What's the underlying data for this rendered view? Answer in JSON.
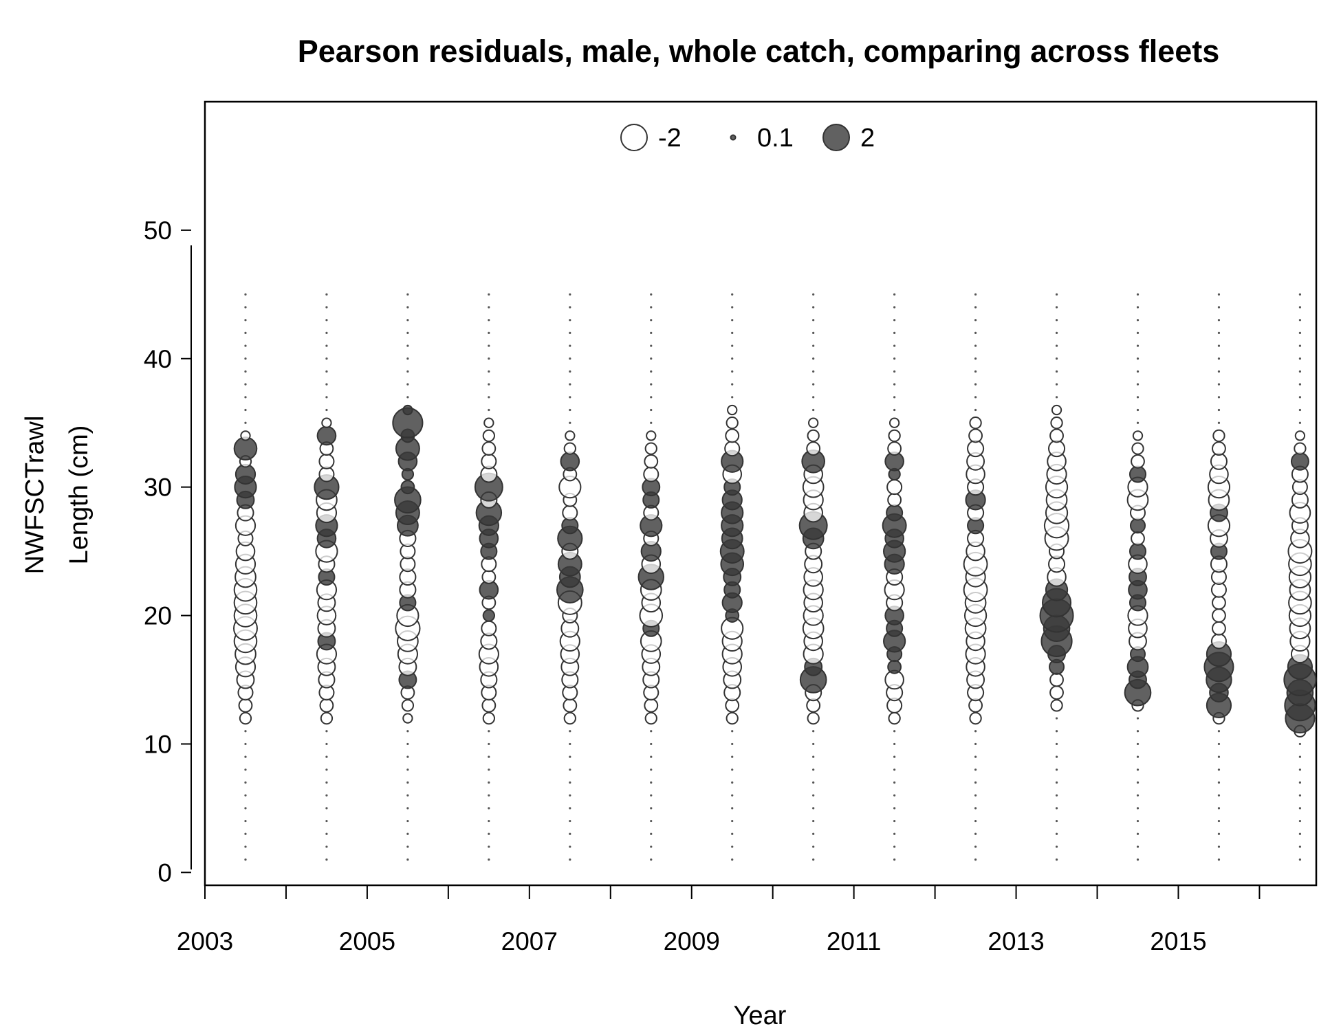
{
  "chart_data": {
    "type": "scatter",
    "subtype": "bubble",
    "title": "Pearson residuals, male, whole catch, comparing across fleets",
    "xlabel": "Year",
    "ylabel": [
      "NWFSCTrawl",
      "Length (cm)"
    ],
    "xlim": [
      2003,
      2016.7
    ],
    "ylim": [
      -1,
      60
    ],
    "x_ticks": [
      2003,
      2004,
      2005,
      2006,
      2007,
      2008,
      2009,
      2010,
      2011,
      2012,
      2013,
      2014,
      2015,
      2016
    ],
    "x_tick_labels": [
      "2003",
      "2005",
      "2007",
      "2009",
      "2011",
      "2013",
      "2015"
    ],
    "y_ticks": [
      0,
      10,
      20,
      30,
      40,
      50
    ],
    "grid": false,
    "legend": {
      "position": "top-center",
      "entries": [
        {
          "label": "-2",
          "value": -2
        },
        {
          "label": "0.1",
          "value": 0.1
        },
        {
          "label": "2",
          "value": 2
        }
      ]
    },
    "colors": {
      "positive_fill": "#3a3a3a",
      "negative_fill": "#ffffff",
      "stroke": "#333333"
    },
    "length_range": [
      1,
      45
    ],
    "columns": [
      {
        "year": 2003.5,
        "residuals": {
          "12": -0.3,
          "13": -0.4,
          "14": -0.5,
          "15": -0.7,
          "16": -0.9,
          "17": -1.0,
          "18": -1.2,
          "19": -1.3,
          "20": -1.2,
          "21": -1.2,
          "22": -1.2,
          "23": -1.0,
          "24": -0.9,
          "25": -0.8,
          "26": -0.5,
          "27": -0.9,
          "28": -0.6,
          "29": 0.7,
          "30": 1.1,
          "31": 0.9,
          "32": -0.3,
          "33": 1.2,
          "34": -0.2
        }
      },
      {
        "year": 2004.5,
        "residuals": {
          "12": -0.3,
          "13": -0.4,
          "14": -0.5,
          "15": -0.6,
          "16": -0.7,
          "17": -0.9,
          "18": 0.7,
          "19": -0.7,
          "20": -0.8,
          "21": -0.7,
          "22": -0.9,
          "23": 0.6,
          "24": -0.6,
          "25": -1.1,
          "26": 0.8,
          "27": 1.1,
          "28": -0.9,
          "29": -1.0,
          "30": 1.4,
          "31": -0.5,
          "32": -0.5,
          "33": -0.4,
          "34": 0.8,
          "35": -0.2
        }
      },
      {
        "year": 2005.5,
        "residuals": {
          "12": -0.2,
          "13": -0.3,
          "14": -0.4,
          "15": 0.7,
          "16": -0.7,
          "17": -0.9,
          "18": -1.0,
          "19": -1.4,
          "20": -1.1,
          "21": 0.6,
          "22": -0.6,
          "23": -0.6,
          "24": -0.5,
          "25": -0.5,
          "26": -0.6,
          "27": 1.0,
          "28": 1.3,
          "29": 1.6,
          "30": 0.4,
          "31": 0.3,
          "32": 0.8,
          "33": 1.3,
          "34": 0.4,
          "35": 2.1,
          "36": 0.2
        }
      },
      {
        "year": 2006.5,
        "residuals": {
          "12": -0.3,
          "13": -0.4,
          "14": -0.5,
          "15": -0.6,
          "16": -0.8,
          "17": -0.9,
          "18": -0.6,
          "19": -0.5,
          "20": 0.3,
          "21": -0.4,
          "22": 0.8,
          "23": -0.4,
          "24": -0.5,
          "25": 0.6,
          "26": 0.8,
          "27": 0.9,
          "28": 1.5,
          "29": -0.6,
          "30": 1.8,
          "31": -0.6,
          "32": -0.5,
          "33": -0.4,
          "34": -0.3,
          "35": -0.2
        }
      },
      {
        "year": 2007.5,
        "residuals": {
          "12": -0.3,
          "13": -0.4,
          "14": -0.5,
          "15": -0.6,
          "16": -0.7,
          "17": -0.8,
          "18": -0.9,
          "19": -0.7,
          "20": -0.5,
          "21": -1.3,
          "22": 1.6,
          "23": 1.0,
          "24": 1.3,
          "25": -0.6,
          "26": 1.4,
          "27": 0.6,
          "28": -0.5,
          "29": -0.4,
          "30": -1.1,
          "31": -0.4,
          "32": 0.8,
          "33": -0.3,
          "34": -0.2
        }
      },
      {
        "year": 2008.5,
        "residuals": {
          "12": -0.3,
          "13": -0.4,
          "14": -0.5,
          "15": -0.6,
          "16": -0.7,
          "17": -0.8,
          "18": -1.0,
          "19": 0.6,
          "20": -1.2,
          "21": -0.8,
          "22": -1.0,
          "23": 1.5,
          "24": -0.8,
          "25": 0.9,
          "26": -0.5,
          "27": 1.1,
          "28": -0.5,
          "29": 0.6,
          "30": 0.7,
          "31": -0.5,
          "32": -0.4,
          "33": -0.3,
          "34": -0.2
        }
      },
      {
        "year": 2009.5,
        "residuals": {
          "12": -0.3,
          "13": -0.4,
          "14": -0.6,
          "15": -0.7,
          "16": -0.8,
          "17": -0.9,
          "18": -0.9,
          "19": -1.1,
          "20": 0.4,
          "21": 0.9,
          "22": 0.6,
          "23": 0.7,
          "24": 1.2,
          "25": 1.3,
          "26": 1.0,
          "27": 1.1,
          "28": 1.1,
          "29": 0.9,
          "30": 0.6,
          "31": -0.8,
          "32": 1.1,
          "33": -0.5,
          "34": -0.4,
          "35": -0.3,
          "36": -0.2
        }
      },
      {
        "year": 2010.5,
        "residuals": {
          "12": -0.3,
          "13": -0.4,
          "14": -0.6,
          "15": 1.6,
          "16": 0.7,
          "17": -0.9,
          "18": -0.8,
          "19": -1.0,
          "20": -0.9,
          "21": -0.8,
          "22": -0.9,
          "23": -0.8,
          "24": -0.7,
          "25": -0.6,
          "26": 1.0,
          "27": 1.8,
          "28": -0.8,
          "29": -0.9,
          "30": -1.0,
          "31": -0.8,
          "32": 1.2,
          "33": -0.4,
          "34": -0.3,
          "35": -0.2
        }
      },
      {
        "year": 2011.5,
        "residuals": {
          "12": -0.3,
          "13": -0.5,
          "14": -0.6,
          "15": -0.8,
          "16": 0.4,
          "17": 0.5,
          "18": 1.1,
          "19": 0.6,
          "20": 0.8,
          "21": -0.6,
          "22": -0.9,
          "23": -0.6,
          "24": 0.9,
          "25": 1.1,
          "26": 0.8,
          "27": 1.3,
          "28": 0.6,
          "29": -0.4,
          "30": -0.5,
          "31": 0.3,
          "32": 0.8,
          "33": -0.4,
          "34": -0.3,
          "35": -0.2
        }
      },
      {
        "year": 2012.5,
        "residuals": {
          "12": -0.3,
          "13": -0.4,
          "14": -0.6,
          "15": -0.7,
          "16": -0.8,
          "17": -0.9,
          "18": -0.8,
          "19": -1.0,
          "20": -1.1,
          "21": -1.0,
          "22": -1.3,
          "23": -0.9,
          "24": -1.3,
          "25": -0.8,
          "26": -0.6,
          "27": 0.6,
          "28": -0.6,
          "29": 0.9,
          "30": -0.6,
          "31": -0.8,
          "32": -0.7,
          "33": -0.6,
          "34": -0.4,
          "35": -0.3
        }
      },
      {
        "year": 2013.5,
        "residuals": {
          "13": -0.3,
          "14": -0.4,
          "15": -0.4,
          "16": 0.5,
          "17": 0.7,
          "18": 2.2,
          "19": 1.6,
          "20": 2.6,
          "21": 1.9,
          "22": 1.1,
          "23": -0.8,
          "24": -0.6,
          "25": -0.5,
          "26": -1.3,
          "27": -1.4,
          "28": -1.1,
          "29": -1.0,
          "30": -1.1,
          "31": -0.9,
          "32": -0.8,
          "33": -0.6,
          "34": -0.4,
          "35": -0.3,
          "36": -0.2
        }
      },
      {
        "year": 2014.5,
        "residuals": {
          "13": -0.3,
          "14": 1.6,
          "15": 0.7,
          "16": 1.0,
          "17": 0.5,
          "18": -0.7,
          "19": -0.8,
          "20": -0.9,
          "21": 0.6,
          "22": 0.8,
          "23": 0.7,
          "24": -0.8,
          "25": 0.6,
          "26": -0.4,
          "27": 0.5,
          "28": -0.5,
          "29": -1.0,
          "30": -0.9,
          "31": 0.6,
          "32": -0.4,
          "33": -0.3,
          "34": -0.2
        }
      },
      {
        "year": 2015.5,
        "residuals": {
          "12": -0.3,
          "13": 1.4,
          "14": 0.8,
          "15": 1.5,
          "16": 2.0,
          "17": 1.4,
          "18": -0.5,
          "19": -0.4,
          "20": -0.4,
          "21": -0.4,
          "22": -0.5,
          "23": -0.5,
          "24": -0.6,
          "25": 0.6,
          "26": -0.7,
          "27": -1.1,
          "28": 0.7,
          "29": -1.0,
          "30": -1.1,
          "31": -0.8,
          "32": -0.6,
          "33": -0.4,
          "34": -0.3
        }
      },
      {
        "year": 2016.5,
        "residuals": {
          "11": -0.3,
          "12": 2.0,
          "13": 2.2,
          "14": 1.6,
          "15": 2.4,
          "16": 1.4,
          "17": -0.7,
          "18": -0.9,
          "19": -1.0,
          "20": -1.1,
          "21": -1.2,
          "22": -1.0,
          "23": -1.1,
          "24": -1.2,
          "25": -1.3,
          "26": -0.8,
          "27": -0.6,
          "28": -1.0,
          "29": -0.6,
          "30": -0.5,
          "31": -0.6,
          "32": 0.7,
          "33": -0.3,
          "34": -0.2
        }
      }
    ]
  }
}
